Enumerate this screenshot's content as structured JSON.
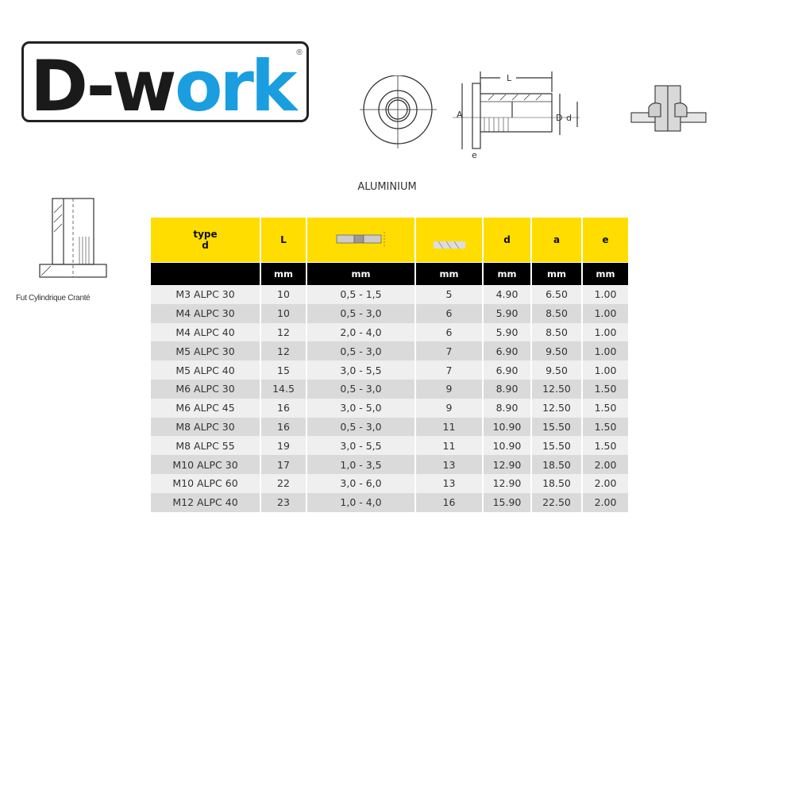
{
  "logo": {
    "text_dark": "D-w",
    "text_blue": "ork",
    "registered": "®",
    "colors": {
      "dark": "#1a1a1a",
      "blue": "#1a9ee0"
    }
  },
  "material": "ALUMINIUM",
  "diagram": {
    "label_L": "L",
    "label_A": "A",
    "label_D": "D",
    "label_d": "d",
    "label_e": "e"
  },
  "side_caption": "Fut Cylindrique Cranté",
  "colors": {
    "header": "#FFDD00",
    "units": "#000000",
    "row_light": "#EFEFEF",
    "row_dark": "#DADADA"
  },
  "table": {
    "headers": [
      {
        "line1": "type",
        "line2": "d"
      },
      {
        "line1": "L"
      },
      {
        "icon": "grip-range-icon"
      },
      {
        "icon": "drill-bit-icon"
      },
      {
        "line1": "d"
      },
      {
        "line1": "a"
      },
      {
        "line1": "e"
      }
    ],
    "units": [
      "",
      "mm",
      "mm",
      "mm",
      "mm",
      "mm",
      "mm"
    ],
    "rows": [
      [
        "M3 ALPC 30",
        "10",
        "0,5 - 1,5",
        "5",
        "4.90",
        "6.50",
        "1.00"
      ],
      [
        "M4 ALPC 30",
        "10",
        "0,5 - 3,0",
        "6",
        "5.90",
        "8.50",
        "1.00"
      ],
      [
        "M4 ALPC 40",
        "12",
        "2,0 - 4,0",
        "6",
        "5.90",
        "8.50",
        "1.00"
      ],
      [
        "M5 ALPC 30",
        "12",
        "0,5 - 3,0",
        "7",
        "6.90",
        "9.50",
        "1.00"
      ],
      [
        "M5 ALPC 40",
        "15",
        "3,0 - 5,5",
        "7",
        "6.90",
        "9.50",
        "1.00"
      ],
      [
        "M6 ALPC 30",
        "14.5",
        "0,5 - 3,0",
        "9",
        "8.90",
        "12.50",
        "1.50"
      ],
      [
        "M6 ALPC 45",
        "16",
        "3,0 - 5,0",
        "9",
        "8.90",
        "12.50",
        "1.50"
      ],
      [
        "M8 ALPC 30",
        "16",
        "0,5 - 3,0",
        "11",
        "10.90",
        "15.50",
        "1.50"
      ],
      [
        "M8 ALPC 55",
        "19",
        "3,0 - 5,5",
        "11",
        "10.90",
        "15.50",
        "1.50"
      ],
      [
        "M10 ALPC 30",
        "17",
        "1,0 - 3,5",
        "13",
        "12.90",
        "18.50",
        "2.00"
      ],
      [
        "M10 ALPC 60",
        "22",
        "3,0 - 6,0",
        "13",
        "12.90",
        "18.50",
        "2.00"
      ],
      [
        "M12 ALPC 40",
        "23",
        "1,0 - 4,0",
        "16",
        "15.90",
        "22.50",
        "2.00"
      ]
    ]
  }
}
